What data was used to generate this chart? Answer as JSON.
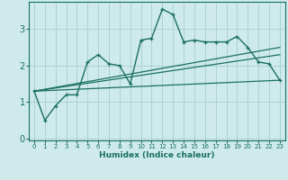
{
  "xlabel": "Humidex (Indice chaleur)",
  "background_color": "#ceeaea",
  "grid_color": "#aacece",
  "line_color": "#1a7060",
  "xlim": [
    -0.5,
    23.5
  ],
  "ylim": [
    -0.05,
    3.75
  ],
  "xticks": [
    0,
    1,
    2,
    3,
    4,
    5,
    6,
    7,
    8,
    9,
    10,
    11,
    12,
    13,
    14,
    15,
    16,
    17,
    18,
    19,
    20,
    21,
    22,
    23
  ],
  "yticks": [
    0,
    1,
    2,
    3
  ],
  "series_main": {
    "x": [
      0,
      1,
      2,
      3,
      4,
      5,
      6,
      7,
      8,
      9,
      10,
      11,
      12,
      13,
      14,
      15,
      16,
      17,
      18,
      19,
      20,
      21,
      22,
      23
    ],
    "y": [
      1.3,
      0.5,
      0.9,
      1.2,
      1.2,
      2.1,
      2.3,
      2.05,
      2.0,
      1.5,
      2.7,
      2.75,
      3.55,
      3.4,
      2.65,
      2.7,
      2.65,
      2.65,
      2.65,
      2.8,
      2.5,
      2.1,
      2.05,
      1.6
    ]
  },
  "series_straight": [
    {
      "x0": 0,
      "y0": 1.3,
      "x1": 23,
      "y1": 2.5
    },
    {
      "x0": 0,
      "y0": 1.3,
      "x1": 23,
      "y1": 2.3
    },
    {
      "x0": 0,
      "y0": 1.3,
      "x1": 23,
      "y1": 1.6
    }
  ]
}
